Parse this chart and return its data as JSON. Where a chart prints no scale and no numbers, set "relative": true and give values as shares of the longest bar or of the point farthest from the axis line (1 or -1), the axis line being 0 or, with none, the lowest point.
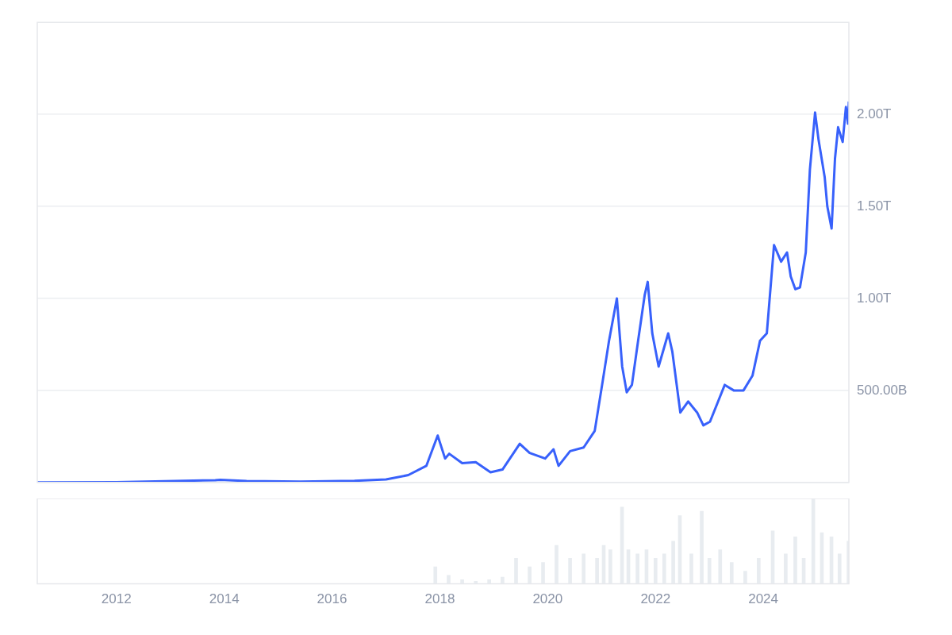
{
  "chart_data": [
    {
      "type": "line",
      "x": [
        "2010-07-14",
        "2012-01-01",
        "2013-11-01",
        "2013-12-05",
        "2014-06-01",
        "2015-06-01",
        "2016-06-01",
        "2017-01-01",
        "2017-06-01",
        "2017-10-01",
        "2017-12-17",
        "2018-02-05",
        "2018-03-05",
        "2018-06-01",
        "2018-09-01",
        "2018-12-10",
        "2019-03-01",
        "2019-06-26",
        "2019-09-01",
        "2019-12-15",
        "2020-02-10",
        "2020-03-15",
        "2020-06-01",
        "2020-09-01",
        "2020-11-15",
        "2021-01-08",
        "2021-02-20",
        "2021-04-14",
        "2021-05-20",
        "2021-06-20",
        "2021-07-25",
        "2021-09-05",
        "2021-10-20",
        "2021-11-09",
        "2021-12-10",
        "2022-01-22",
        "2022-03-28",
        "2022-04-25",
        "2022-06-18",
        "2022-08-10",
        "2022-10-10",
        "2022-11-21",
        "2023-01-05",
        "2023-03-01",
        "2023-04-15",
        "2023-06-15",
        "2023-08-20",
        "2023-10-20",
        "2023-12-10",
        "2024-01-25",
        "2024-03-14",
        "2024-05-01",
        "2024-06-10",
        "2024-07-05",
        "2024-08-05",
        "2024-09-06",
        "2024-10-15",
        "2024-11-12",
        "2024-12-17",
        "2025-01-10",
        "2025-02-20",
        "2025-03-10",
        "2025-04-08",
        "2025-05-01",
        "2025-05-22",
        "2025-06-22",
        "2025-07-14",
        "2025-07-28",
        "2025-08-03"
      ],
      "series": [
        {
          "color": "#3861fb",
          "values": [
            0,
            1000000000.0,
            12000000000.0,
            14000000000.0,
            8000000000.0,
            4000000000.0,
            9000000000.0,
            16000000000.0,
            40000000000.0,
            90000000000.0,
            255000000000.0,
            130000000000.0,
            156000000000.0,
            105000000000.0,
            110000000000.0,
            55000000000.0,
            70000000000.0,
            210000000000.0,
            160000000000.0,
            130000000000.0,
            180000000000.0,
            90000000000.0,
            170000000000.0,
            190000000000.0,
            280000000000.0,
            550000000000.0,
            770000000000.0,
            1000000000000.0,
            630000000000.0,
            490000000000.0,
            530000000000.0,
            770000000000.0,
            1020000000000.0,
            1090000000000.0,
            810000000000.0,
            630000000000.0,
            810000000000.0,
            710000000000.0,
            380000000000.0,
            440000000000.0,
            380000000000.0,
            310000000000.0,
            330000000000.0,
            440000000000.0,
            530000000000.0,
            500000000000.0,
            500000000000.0,
            580000000000.0,
            770000000000.0,
            810000000000.0,
            1290000000000.0,
            1200000000000.0,
            1250000000000.0,
            1120000000000.0,
            1050000000000.0,
            1060000000000.0,
            1250000000000.0,
            1700000000000.0,
            2010000000000.0,
            1860000000000.0,
            1660000000000.0,
            1500000000000.0,
            1380000000000.0,
            1760000000000.0,
            1930000000000.0,
            1850000000000.0,
            2040000000000.0,
            1950000000000.0,
            2070000000000.0
          ]
        }
      ],
      "xlim": [
        "2010-07-14",
        "2025-08-03"
      ],
      "ylim": [
        0,
        2500000000000.0
      ],
      "yticks": [
        {
          "value": 0,
          "label": null
        },
        {
          "value": 500000000000.0,
          "label": "500.00B"
        },
        {
          "value": 1000000000000.0,
          "label": "1.00T"
        },
        {
          "value": 1500000000000.0,
          "label": "1.50T"
        },
        {
          "value": 2000000000000.0,
          "label": "2.00T"
        }
      ],
      "grid": "y",
      "tick_labels": "y"
    },
    {
      "type": "bar",
      "relative": true,
      "color": "#e8ecf0",
      "x": [
        "2017-12-01",
        "2018-03-01",
        "2018-06-01",
        "2018-09-01",
        "2018-12-01",
        "2019-03-01",
        "2019-06-01",
        "2019-09-01",
        "2019-12-01",
        "2020-03-01",
        "2020-06-01",
        "2020-09-01",
        "2020-12-01",
        "2021-01-15",
        "2021-03-01",
        "2021-05-19",
        "2021-07-01",
        "2021-09-01",
        "2021-11-01",
        "2022-01-01",
        "2022-03-01",
        "2022-05-01",
        "2022-06-15",
        "2022-09-01",
        "2022-11-10",
        "2023-01-01",
        "2023-03-15",
        "2023-06-01",
        "2023-09-01",
        "2023-12-01",
        "2024-03-05",
        "2024-06-01",
        "2024-08-05",
        "2024-10-01",
        "2024-12-05",
        "2025-02-01",
        "2025-04-07",
        "2025-06-01",
        "2025-08-01"
      ],
      "values": [
        0.2,
        0.1,
        0.05,
        0.03,
        0.05,
        0.08,
        0.3,
        0.2,
        0.25,
        0.45,
        0.3,
        0.35,
        0.3,
        0.45,
        0.4,
        0.9,
        0.4,
        0.35,
        0.4,
        0.3,
        0.35,
        0.5,
        0.8,
        0.35,
        0.85,
        0.3,
        0.4,
        0.25,
        0.15,
        0.3,
        0.62,
        0.35,
        0.55,
        0.3,
        1,
        0.6,
        0.55,
        0.35,
        0.5
      ],
      "xlim": [
        "2010-07-14",
        "2025-08-03"
      ],
      "xticks": [
        "2012",
        "2014",
        "2016",
        "2018",
        "2020",
        "2022",
        "2024"
      ],
      "tick_labels": "x"
    }
  ]
}
